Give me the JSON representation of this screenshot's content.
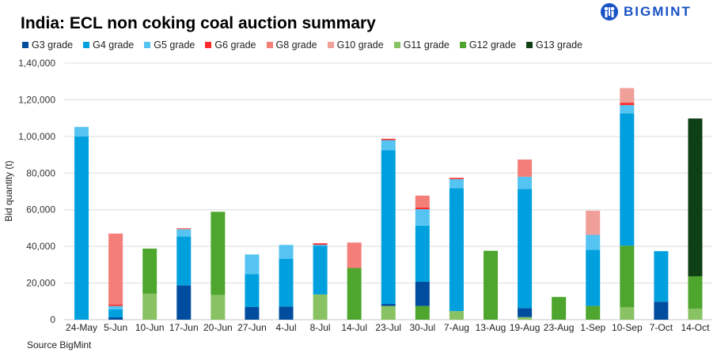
{
  "title": "India: ECL non coking coal auction summary",
  "logo": "BIGMINT",
  "source": "Source BigMint",
  "chart_data": {
    "type": "bar",
    "stacked": true,
    "title": "India: ECL non coking coal auction summary",
    "xlabel": "",
    "ylabel": "Bid quantity (t)",
    "ylim": [
      0,
      140000
    ],
    "yticks": [
      0,
      20000,
      40000,
      60000,
      80000,
      100000,
      120000,
      140000
    ],
    "ytick_labels": [
      "0",
      "20,000",
      "40,000",
      "60,000",
      "80,000",
      "1,00,000",
      "1,20,000",
      "1,40,000"
    ],
    "grid": true,
    "legend_position": "top",
    "categories": [
      "24-May",
      "5-Jun",
      "10-Jun",
      "17-Jun",
      "20-Jun",
      "27-Jun",
      "4-Jul",
      "8-Jul",
      "14-Jul",
      "23-Jul",
      "30-Jul",
      "7-Aug",
      "13-Aug",
      "19-Aug",
      "23-Aug",
      "1-Sep",
      "10-Sep",
      "7-Oct",
      "14-Oct"
    ],
    "series": [
      {
        "name": "G3 grade",
        "color": "#004c9e",
        "values": [
          0,
          1300,
          0,
          18700,
          0,
          6900,
          7200,
          0,
          0,
          1100,
          13200,
          0,
          0,
          4900,
          0,
          0,
          0,
          9800,
          0
        ]
      },
      {
        "name": "G4 grade",
        "color": "#00a0df",
        "values": [
          100000,
          4400,
          0,
          26700,
          0,
          18000,
          26100,
          26600,
          0,
          83800,
          30600,
          67100,
          0,
          65100,
          0,
          30600,
          72200,
          27600,
          0
        ]
      },
      {
        "name": "G5 grade",
        "color": "#56c4f2",
        "values": [
          5200,
          1800,
          0,
          3900,
          0,
          10700,
          7500,
          500,
          0,
          5600,
          9000,
          4900,
          0,
          6600,
          0,
          8200,
          4500,
          0,
          0
        ]
      },
      {
        "name": "G6 grade",
        "color": "#ff2b2b",
        "values": [
          0,
          700,
          0,
          0,
          0,
          0,
          0,
          800,
          0,
          700,
          900,
          700,
          0,
          0,
          0,
          0,
          1300,
          0,
          0
        ]
      },
      {
        "name": "G8 grade",
        "color": "#f47f79",
        "values": [
          0,
          38800,
          0,
          700,
          0,
          0,
          0,
          0,
          13900,
          0,
          6500,
          0,
          0,
          9400,
          0,
          0,
          0,
          0,
          0
        ]
      },
      {
        "name": "G10 grade",
        "color": "#f09f99",
        "values": [
          0,
          0,
          0,
          0,
          0,
          0,
          0,
          0,
          0,
          0,
          0,
          0,
          0,
          0,
          0,
          13200,
          8000,
          0,
          0
        ]
      },
      {
        "name": "G11 grade",
        "color": "#88c262",
        "values": [
          0,
          0,
          14100,
          0,
          13500,
          0,
          0,
          13800,
          0,
          7500,
          0,
          4700,
          0,
          1400,
          0,
          0,
          6900,
          0,
          6000
        ]
      },
      {
        "name": "G12 grade",
        "color": "#4ea62e",
        "values": [
          0,
          0,
          24700,
          0,
          45400,
          0,
          0,
          0,
          28200,
          0,
          7500,
          0,
          37600,
          0,
          12400,
          7500,
          33500,
          0,
          17700
        ]
      },
      {
        "name": "G13 grade",
        "color": "#0f3f15",
        "values": [
          0,
          0,
          0,
          0,
          0,
          0,
          0,
          0,
          0,
          0,
          0,
          0,
          0,
          0,
          0,
          0,
          0,
          0,
          86100
        ]
      }
    ]
  }
}
